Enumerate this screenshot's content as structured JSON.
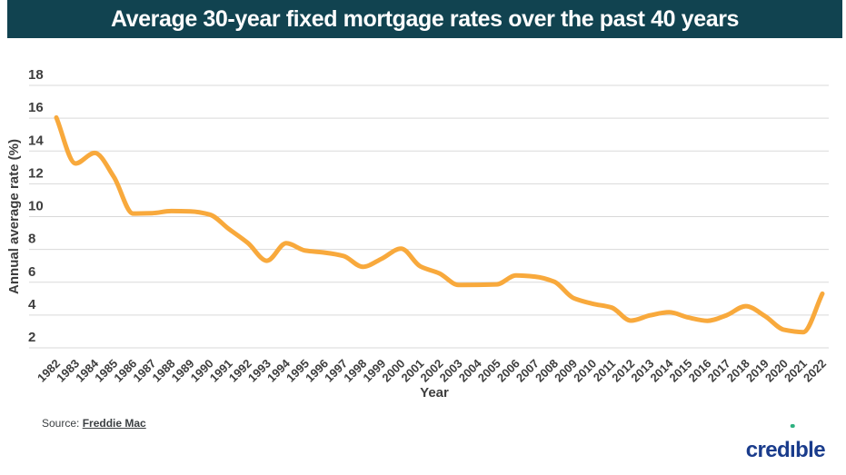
{
  "header": {
    "title": "Average 30-year fixed mortgage rates over the past 40 years"
  },
  "chart_data": {
    "type": "line",
    "title": "Average 30-year fixed mortgage rates over the past 40 years",
    "xlabel": "Year",
    "ylabel": "Annual average rate (%)",
    "x": [
      1982,
      1983,
      1984,
      1985,
      1986,
      1987,
      1988,
      1989,
      1990,
      1991,
      1992,
      1993,
      1994,
      1995,
      1996,
      1997,
      1998,
      1999,
      2000,
      2001,
      2002,
      2003,
      2004,
      2005,
      2006,
      2007,
      2008,
      2009,
      2010,
      2011,
      2012,
      2013,
      2014,
      2015,
      2016,
      2017,
      2018,
      2019,
      2020,
      2021,
      2022
    ],
    "series": [
      {
        "name": "Average 30-year fixed mortgage rate",
        "values": [
          16.04,
          13.24,
          13.88,
          12.43,
          10.19,
          10.21,
          10.34,
          10.32,
          10.13,
          9.25,
          8.39,
          7.31,
          8.38,
          7.93,
          7.81,
          7.6,
          6.94,
          7.44,
          8.05,
          6.97,
          6.54,
          5.83,
          5.84,
          5.87,
          6.41,
          6.34,
          6.03,
          5.04,
          4.69,
          4.45,
          3.66,
          3.98,
          4.17,
          3.85,
          3.65,
          3.99,
          4.54,
          3.94,
          3.1,
          2.96,
          5.3
        ]
      }
    ],
    "ylim": [
      2,
      18
    ],
    "ytick_step": 2,
    "grid": true,
    "legend_position": "none",
    "line_color": "#f8a93c"
  },
  "footer": {
    "source_label": "Source:",
    "source_link": "Freddie Mac",
    "brand": "credible"
  },
  "colors": {
    "header_bg": "#114350",
    "header_text": "#ffffff",
    "line": "#f8a93c",
    "grid": "#d9d9d9",
    "axis_text": "#3e3e3e",
    "brand_navy": "#1a3c8c",
    "brand_dot_green": "#2eb180"
  }
}
